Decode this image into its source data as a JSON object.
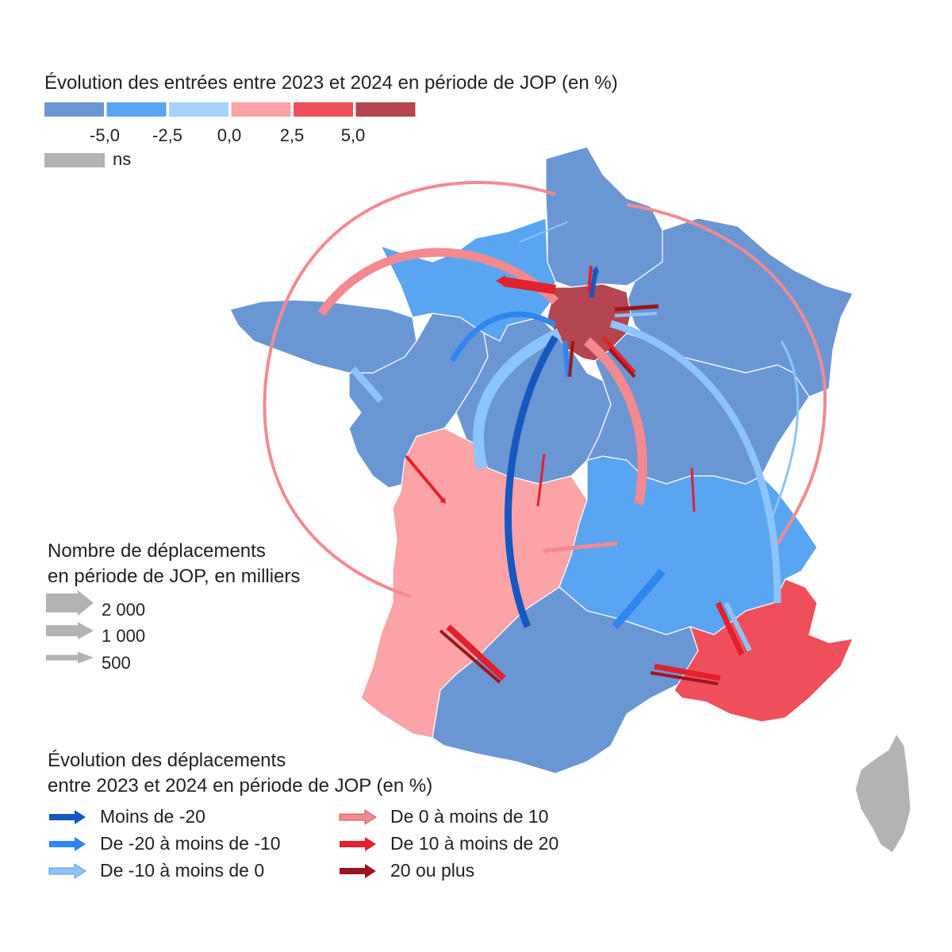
{
  "choropleth_legend": {
    "title": "Évolution des entrées entre 2023 et 2024 en période de JOP (en %)",
    "colors": [
      "#6a96d4",
      "#5aa5f2",
      "#a7d1ff",
      "#fca3a8",
      "#ef4f5a",
      "#b5464f"
    ],
    "ticks": [
      "-5,0",
      "-2,5",
      "0,0",
      "2,5",
      "5,0"
    ],
    "ns_color": "#b3b3b3",
    "ns_label": "ns"
  },
  "size_legend": {
    "title_line1": "Nombre de déplacements",
    "title_line2": "en période de JOP, en milliers",
    "items": [
      "2 000",
      "1 000",
      "500"
    ]
  },
  "arrow_legend": {
    "title_line1": "Évolution des déplacements",
    "title_line2": "entre 2023 et 2024 en période de JOP (en %)",
    "items": [
      {
        "label": "Moins de -20",
        "color": "#1558c0"
      },
      {
        "label": "De -20 à moins de -10",
        "color": "#2f86ee"
      },
      {
        "label": "De -10 à moins de 0",
        "color": "#8cc4ff"
      },
      {
        "label": "De 0 à moins de 10",
        "color": "#f48a8f"
      },
      {
        "label": "De 10 à moins de 20",
        "color": "#e3202c"
      },
      {
        "label": "20 ou plus",
        "color": "#9b1520"
      }
    ]
  },
  "regions": [
    {
      "name": "Hauts-de-France",
      "class": "-5,0",
      "color": "#6a96d4"
    },
    {
      "name": "Normandie",
      "class": "-2,5",
      "color": "#5aa5f2"
    },
    {
      "name": "Île-de-France",
      "class": "5,0",
      "color": "#b5464f"
    },
    {
      "name": "Grand Est",
      "class": "-5,0",
      "color": "#6a96d4"
    },
    {
      "name": "Bretagne",
      "class": "-5,0",
      "color": "#6a96d4"
    },
    {
      "name": "Pays de la Loire",
      "class": "-5,0",
      "color": "#6a96d4"
    },
    {
      "name": "Centre-Val de Loire",
      "class": "-5,0",
      "color": "#6a96d4"
    },
    {
      "name": "Bourgogne-Franche-Comté",
      "class": "-5,0",
      "color": "#6a96d4"
    },
    {
      "name": "Nouvelle-Aquitaine",
      "class": "0,0",
      "color": "#fca3a8"
    },
    {
      "name": "Auvergne-Rhône-Alpes",
      "class": "-2,5",
      "color": "#5aa5f2"
    },
    {
      "name": "Occitanie",
      "class": "-5,0",
      "color": "#6a96d4"
    },
    {
      "name": "Provence-Alpes-Côte d'Azur",
      "class": "2,5",
      "color": "#ef4f5a"
    },
    {
      "name": "Corse",
      "class": "ns",
      "color": "#b3b3b3"
    }
  ]
}
